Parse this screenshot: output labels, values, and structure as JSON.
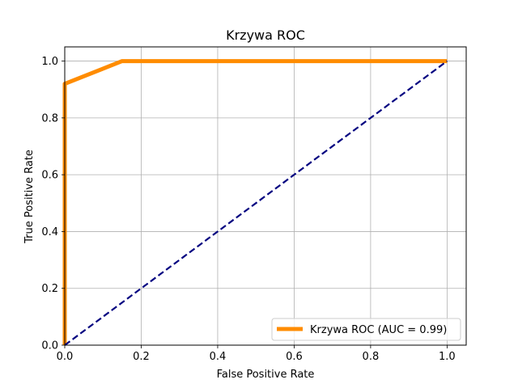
{
  "chart_data": {
    "type": "line",
    "title": "Krzywa ROC",
    "xlabel": "False Positive Rate",
    "ylabel": "True Positive Rate",
    "xlim": [
      0.0,
      1.05
    ],
    "ylim": [
      0.0,
      1.05
    ],
    "xticks": [
      "0.0",
      "0.2",
      "0.4",
      "0.6",
      "0.8",
      "1.0"
    ],
    "yticks": [
      "0.0",
      "0.2",
      "0.4",
      "0.6",
      "0.8",
      "1.0"
    ],
    "grid": true,
    "legend_position": "lower-right",
    "series": [
      {
        "name": "Krzywa ROC (AUC = 0.99)",
        "color": "#ff8c00",
        "style": "solid",
        "x": [
          0.0,
          0.0,
          0.15,
          1.0
        ],
        "y": [
          0.0,
          0.92,
          1.0,
          1.0
        ]
      },
      {
        "color": "#000080",
        "style": "dashed",
        "x": [
          0.0,
          1.0
        ],
        "y": [
          0.0,
          1.0
        ]
      }
    ]
  }
}
